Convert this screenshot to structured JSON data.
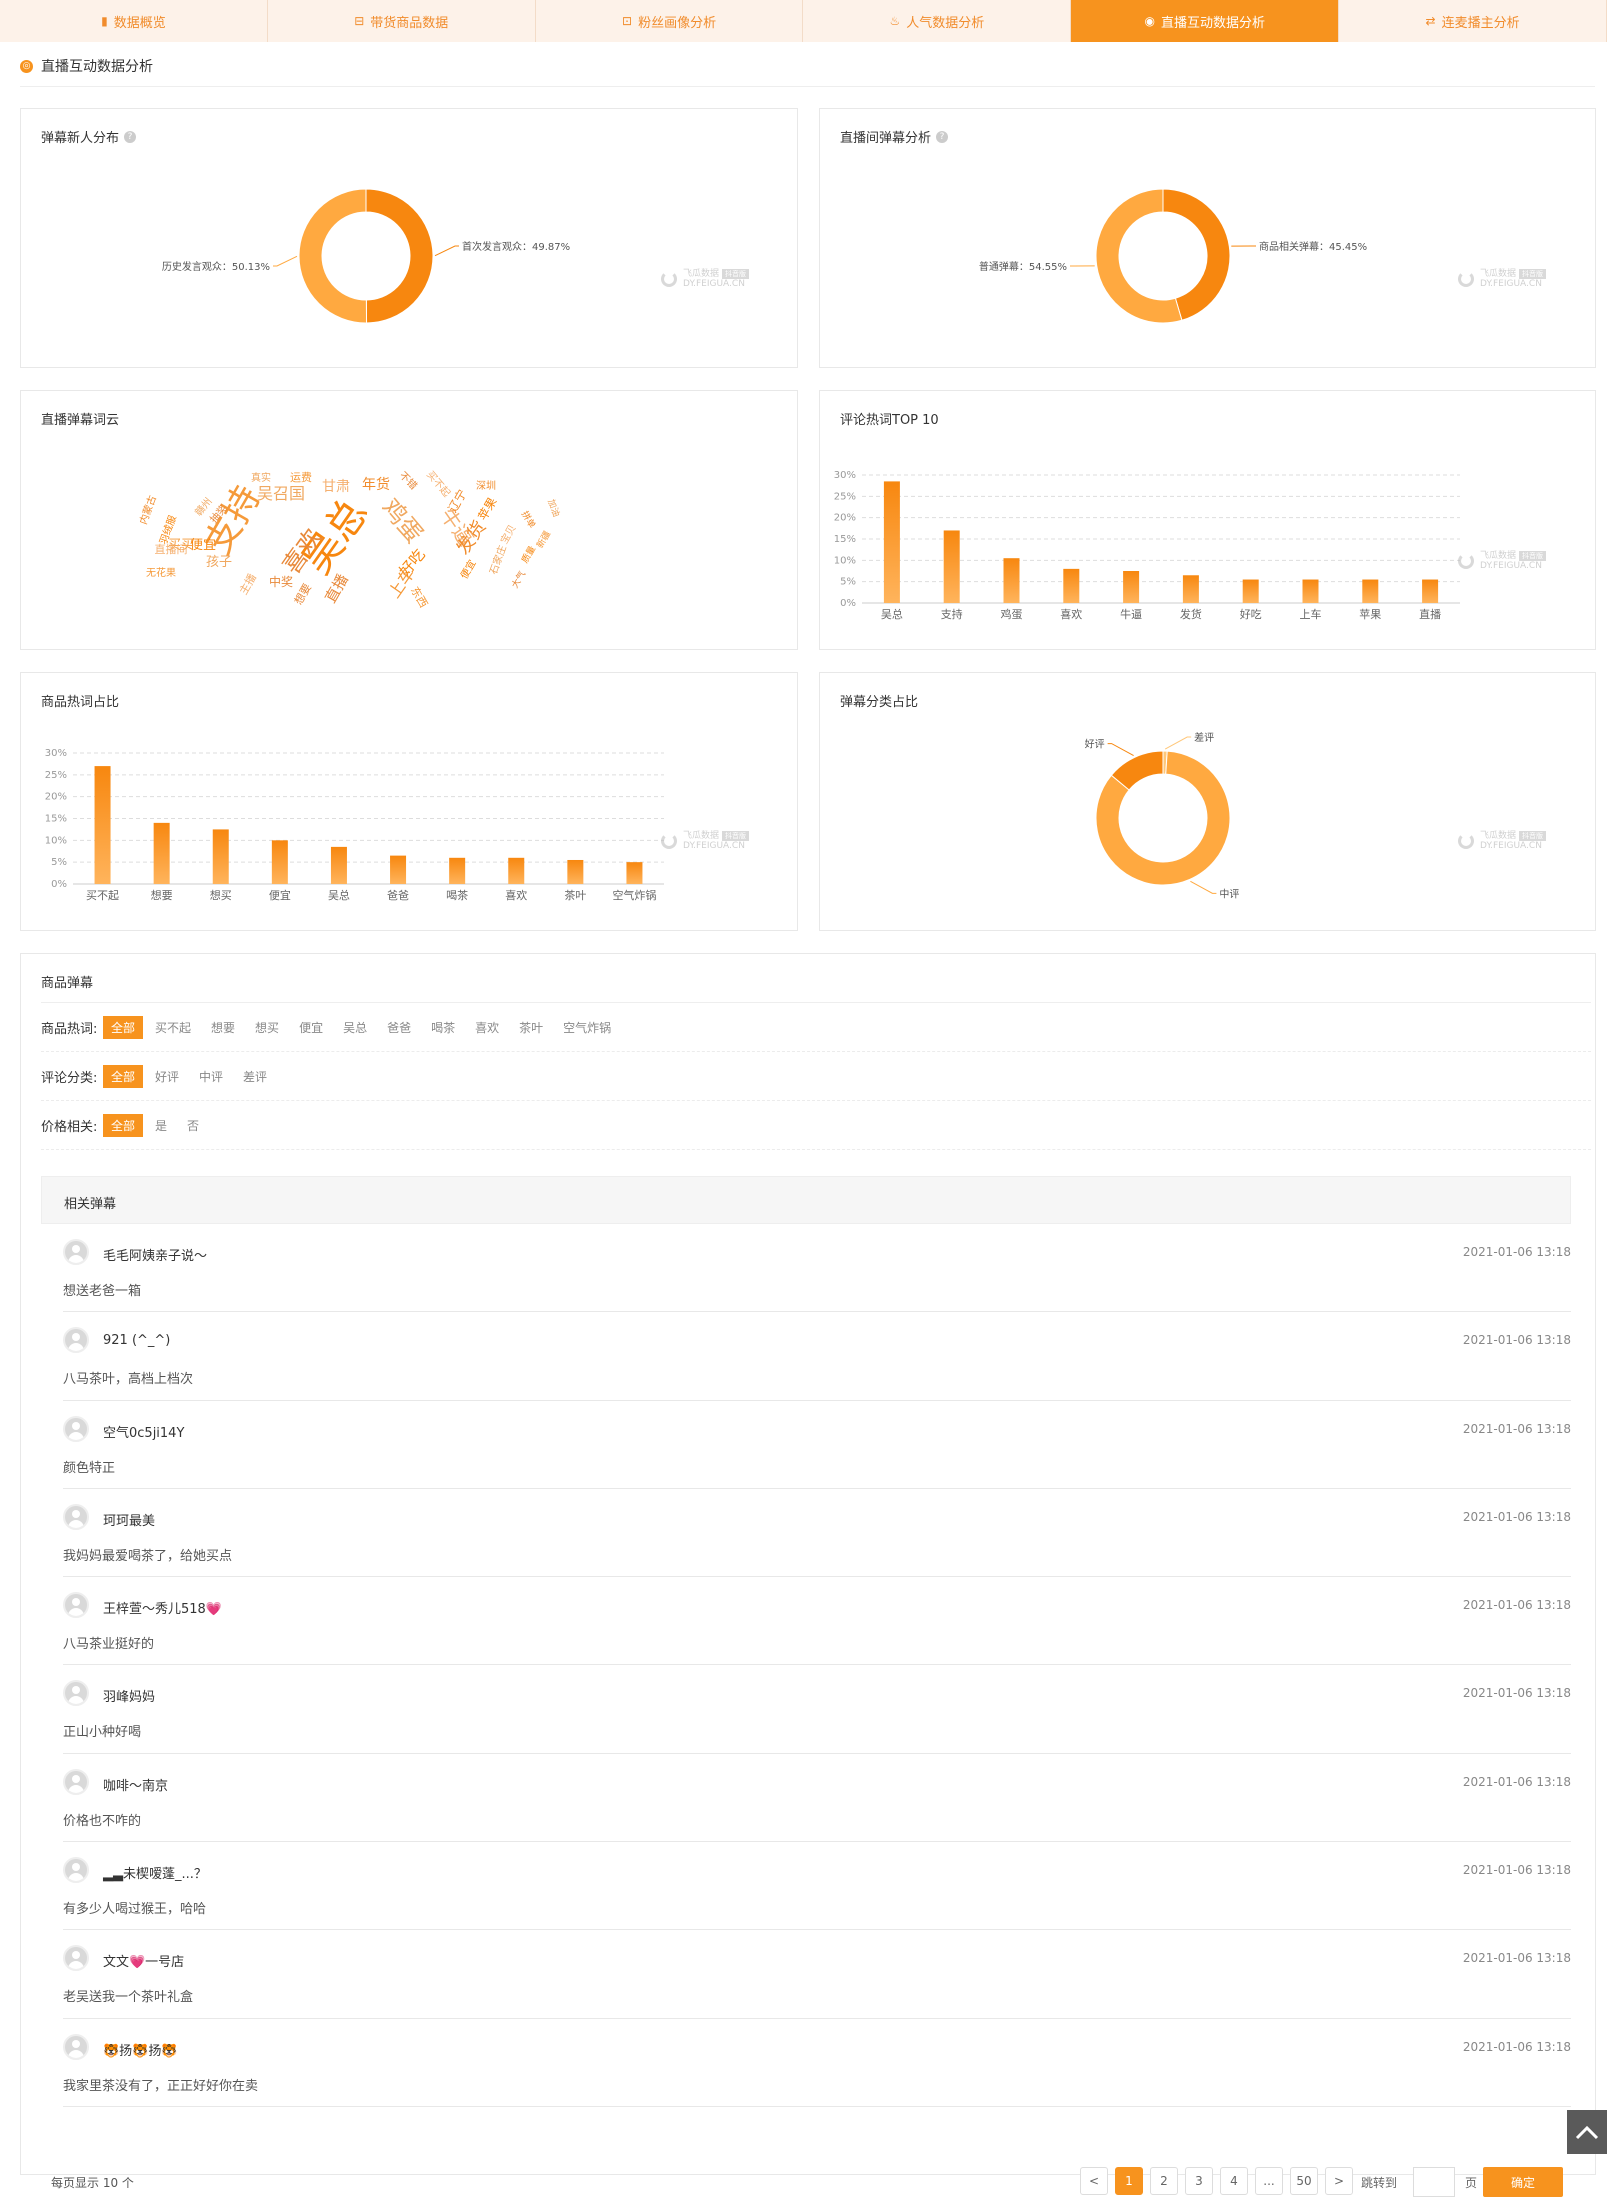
{
  "tabs": [
    {
      "label": "数据概览",
      "icon": "bar-chart-icon",
      "active": false
    },
    {
      "label": "带货商品数据",
      "icon": "basket-icon",
      "active": false
    },
    {
      "label": "粉丝画像分析",
      "icon": "face-scan-icon",
      "active": false
    },
    {
      "label": "人气数据分析",
      "icon": "fire-icon",
      "active": false
    },
    {
      "label": "直播互动数据分析",
      "icon": "interaction-icon",
      "active": true
    },
    {
      "label": "连麦播主分析",
      "icon": "link-mic-icon",
      "active": false
    }
  ],
  "section_title": "直播互动数据分析",
  "watermark": {
    "name": "飞瓜数据",
    "badge": "抖音版",
    "url": "DY.FEIGUA.CN"
  },
  "cards": {
    "danmu_newcomers": {
      "title": "弹幕新人分布",
      "chart_data": {
        "type": "pie",
        "donut": true,
        "slices": [
          {
            "label": "历史发言观众",
            "value": 50.13,
            "display": "历史发言观众：50.13%",
            "color": "#ffa940"
          },
          {
            "label": "首次发言观众",
            "value": 49.87,
            "display": "首次发言观众：49.87%",
            "color": "#f7870f"
          }
        ]
      }
    },
    "room_danmu": {
      "title": "直播间弹幕分析",
      "chart_data": {
        "type": "pie",
        "donut": true,
        "slices": [
          {
            "label": "普通弹幕",
            "value": 54.55,
            "display": "普通弹幕：54.55%",
            "color": "#ffa940"
          },
          {
            "label": "商品相关弹幕",
            "value": 45.45,
            "display": "商品相关弹幕：45.45%",
            "color": "#f7870f"
          }
        ]
      }
    },
    "word_cloud": {
      "title": "直播弹幕词云",
      "words": [
        "吴总",
        "支持",
        "鸡蛋",
        "喜欢",
        "牛逼",
        "发货",
        "好吃",
        "上车",
        "吴召国",
        "直播",
        "甘肃",
        "年货",
        "便宜",
        "买买",
        "孩子",
        "中奖",
        "直播间",
        "辽宁",
        "苹果",
        "运费",
        "真实",
        "不错",
        "买不起",
        "深圳",
        "便宜",
        "东西",
        "石家庄",
        "想要",
        "主播",
        "内蒙古",
        "羽绒服",
        "无花果",
        "赣州",
        "抽奖",
        "宝贝",
        "拼单",
        "质量",
        "新疆",
        "加油",
        "大气"
      ]
    },
    "comment_hot": {
      "title": "评论热词TOP 10",
      "chart_data": {
        "type": "bar",
        "categories": [
          "吴总",
          "支持",
          "鸡蛋",
          "喜欢",
          "牛逼",
          "发货",
          "好吃",
          "上车",
          "苹果",
          "直播"
        ],
        "values": [
          28.5,
          17,
          10.5,
          8,
          7.5,
          6.5,
          5.5,
          5.5,
          5.5,
          5.5
        ],
        "ylim": [
          0,
          30
        ],
        "yticks": [
          "0%",
          "5%",
          "10%",
          "15%",
          "20%",
          "25%",
          "30%"
        ],
        "grid": true
      }
    },
    "product_hot": {
      "title": "商品热词占比",
      "chart_data": {
        "type": "bar",
        "categories": [
          "买不起",
          "想要",
          "想买",
          "便宜",
          "吴总",
          "爸爸",
          "喝茶",
          "喜欢",
          "茶叶",
          "空气炸锅"
        ],
        "values": [
          27,
          14,
          12.5,
          10,
          8.5,
          6.5,
          6,
          6,
          5.5,
          5
        ],
        "ylim": [
          0,
          30
        ],
        "yticks": [
          "0%",
          "5%",
          "10%",
          "15%",
          "20%",
          "25%",
          "30%"
        ],
        "grid": true
      }
    },
    "danmu_category": {
      "title": "弹幕分类占比",
      "chart_data": {
        "type": "pie",
        "donut": true,
        "slices": [
          {
            "label": "好评",
            "value": 14,
            "display": "好评",
            "color": "#f7870f"
          },
          {
            "label": "中评",
            "value": 85,
            "display": "中评",
            "color": "#ffa940"
          },
          {
            "label": "差评",
            "value": 1,
            "display": "差评",
            "color": "#ffc77a"
          }
        ]
      }
    }
  },
  "product_danmu": {
    "title": "商品弹幕",
    "filters": [
      {
        "label": "商品热词:",
        "options": [
          "全部",
          "买不起",
          "想要",
          "想买",
          "便宜",
          "吴总",
          "爸爸",
          "喝茶",
          "喜欢",
          "茶叶",
          "空气炸锅"
        ],
        "selected": "全部"
      },
      {
        "label": "评论分类:",
        "options": [
          "全部",
          "好评",
          "中评",
          "差评"
        ],
        "selected": "全部"
      },
      {
        "label": "价格相关:",
        "options": [
          "全部",
          "是",
          "否"
        ],
        "selected": "全部"
      }
    ],
    "list_header": "相关弹幕",
    "comments": [
      {
        "user": "毛毛阿姨亲子说～",
        "time": "2021-01-06 13:18",
        "text": "想送老爸一箱"
      },
      {
        "user": "921 (^_^)",
        "time": "2021-01-06 13:18",
        "text": "八马茶叶，高档上档次"
      },
      {
        "user": "空气0c5ji14Y",
        "time": "2021-01-06 13:18",
        "text": "颜色特正"
      },
      {
        "user": "珂珂最美",
        "time": "2021-01-06 13:18",
        "text": "我妈妈最爱喝茶了，给她买点"
      },
      {
        "user": "王梓萱～秀儿518💗",
        "time": "2021-01-06 13:18",
        "text": "八马茶业挺好的"
      },
      {
        "user": "羽峰妈妈",
        "time": "2021-01-06 13:18",
        "text": "正山小种好喝"
      },
      {
        "user": "咖啡～南京",
        "time": "2021-01-06 13:18",
        "text": "价格也不咋的"
      },
      {
        "user": "▂▃未楔嗳蓬_...？",
        "time": "2021-01-06 13:18",
        "text": "有多少人喝过猴王，哈哈"
      },
      {
        "user": "文文💗一号店",
        "time": "2021-01-06 13:18",
        "text": "老吴送我一个茶叶礼盒"
      },
      {
        "user": "🐯扬🐯扬🐯",
        "time": "2021-01-06 13:18",
        "text": "我家里茶没有了，正正好好你在卖"
      }
    ],
    "pagination": {
      "page_size_text": "每页显示 10 个",
      "pages": [
        "<",
        "1",
        "2",
        "3",
        "4",
        "...",
        "50",
        ">"
      ],
      "current": "1",
      "jump_label": "跳转到",
      "page_unit": "页",
      "confirm": "确定"
    }
  }
}
